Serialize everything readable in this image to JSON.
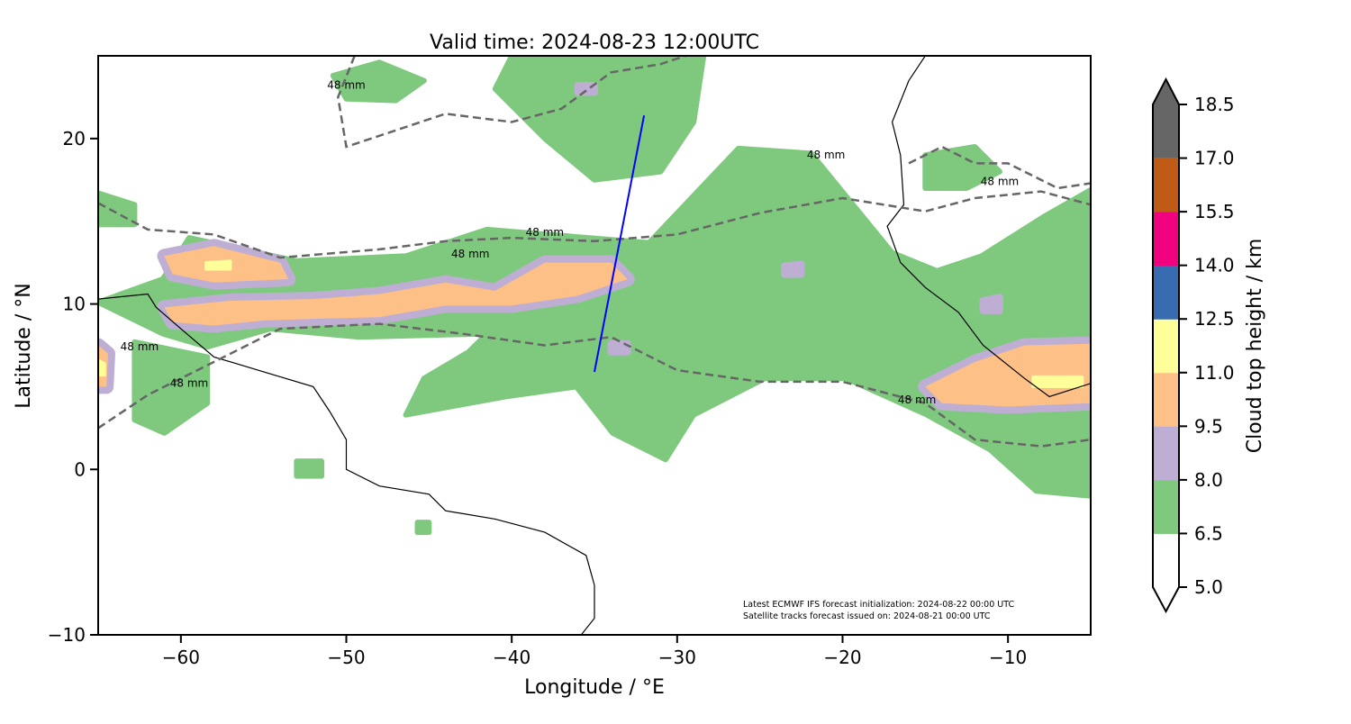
{
  "chart_data": {
    "type": "map",
    "title": "Valid time: 2024-08-23 12:00UTC",
    "xlabel": "Longitude / °E",
    "ylabel": "Latitude / °N",
    "xlim": [
      -65,
      -5
    ],
    "ylim": [
      -10,
      25
    ],
    "xticks": [
      -60,
      -50,
      -40,
      -30,
      -20,
      -10
    ],
    "xtick_labels": [
      "−60",
      "−50",
      "−40",
      "−30",
      "−20",
      "−10"
    ],
    "yticks": [
      -10,
      0,
      10,
      20
    ],
    "ytick_labels": [
      "−10",
      "0",
      "10",
      "20"
    ],
    "colorbar": {
      "label": "Cloud top height / km",
      "ticks": [
        "5.0",
        "6.5",
        "8.0",
        "9.5",
        "11.0",
        "12.5",
        "14.0",
        "15.5",
        "17.0",
        "18.5"
      ],
      "colors": [
        "#ffffff",
        "#7fc97f",
        "#beaed4",
        "#fdc086",
        "#ffff99",
        "#386cb0",
        "#f0027f",
        "#bf5b17",
        "#666666"
      ],
      "extend": "both"
    },
    "annotation": [
      "Latest ECMWF IFS forecast initialization: 2024-08-22 00:00 UTC",
      "Satellite tracks forecast issued on: 2024-08-21 00:00 UTC"
    ],
    "contour_label": "48 mm",
    "contour_label_positions": [
      [
        -50,
        23
      ],
      [
        -21,
        18.8
      ],
      [
        -10.5,
        17.2
      ],
      [
        -38,
        14.1
      ],
      [
        -42.5,
        12.8
      ],
      [
        -62.5,
        7.2
      ],
      [
        -59.5,
        5
      ],
      [
        -15.5,
        4
      ]
    ],
    "green_regions": [
      [
        [
          -61.1,
          11.5
        ],
        [
          -59.5,
          14.0
        ],
        [
          -53.0,
          12.6
        ],
        [
          -46.4,
          12.9
        ],
        [
          -41.5,
          14.5
        ],
        [
          -31.7,
          13.7
        ],
        [
          -26.3,
          19.4
        ],
        [
          -21.9,
          19.1
        ],
        [
          -17.0,
          13.1
        ],
        [
          -14.3,
          12.0
        ],
        [
          -11.6,
          12.9
        ],
        [
          -7.8,
          15.3
        ],
        [
          -5,
          16.9
        ],
        [
          -5,
          -1.6
        ],
        [
          -8.3,
          -1.3
        ],
        [
          -11.1,
          1.2
        ],
        [
          -14.9,
          3.3
        ],
        [
          -19.8,
          5.5
        ],
        [
          -24.7,
          5.5
        ],
        [
          -29.0,
          3.3
        ],
        [
          -30.7,
          0.6
        ],
        [
          -33.9,
          2.2
        ],
        [
          -36.1,
          5.0
        ],
        [
          -40.4,
          4.4
        ],
        [
          -46.4,
          3.3
        ],
        [
          -45.3,
          5.5
        ],
        [
          -42.6,
          7.1
        ],
        [
          -41.5,
          8.2
        ],
        [
          -49.2,
          8.0
        ],
        [
          -54.6,
          8.5
        ],
        [
          -58.4,
          7.4
        ],
        [
          -61.1,
          8.2
        ],
        [
          -65,
          10.1
        ]
      ],
      [
        [
          -40,
          25
        ],
        [
          -28.4,
          25
        ],
        [
          -29,
          21
        ],
        [
          -31,
          18
        ],
        [
          -35,
          17.5
        ],
        [
          -38,
          20
        ],
        [
          -41,
          23
        ]
      ],
      [
        [
          -50.8,
          23.8
        ],
        [
          -48,
          24.6
        ],
        [
          -45.3,
          23.5
        ],
        [
          -47,
          22.3
        ],
        [
          -50,
          22.4
        ]
      ],
      [
        [
          -65,
          16.7
        ],
        [
          -62.8,
          16
        ],
        [
          -62.8,
          14.8
        ],
        [
          -65,
          14.8
        ]
      ],
      [
        [
          -62.8,
          7.7
        ],
        [
          -58.4,
          6.8
        ],
        [
          -58.4,
          4.0
        ],
        [
          -61,
          2.2
        ],
        [
          -62.8,
          3.0
        ]
      ],
      [
        [
          -45.7,
          -3.2
        ],
        [
          -45,
          -3.2
        ],
        [
          -45,
          -3.8
        ],
        [
          -45.7,
          -3.8
        ]
      ],
      [
        [
          -53,
          0.5
        ],
        [
          -51.5,
          0.5
        ],
        [
          -51.5,
          -0.4
        ],
        [
          -53,
          -0.4
        ]
      ],
      [
        [
          -15,
          19
        ],
        [
          -12,
          19.5
        ],
        [
          -10.5,
          18
        ],
        [
          -12.5,
          17
        ],
        [
          -15,
          17
        ]
      ]
    ],
    "orange_regions": [
      [
        [
          -61,
          12.9
        ],
        [
          -58,
          13.5
        ],
        [
          -54,
          12.5
        ],
        [
          -53.5,
          11.5
        ],
        [
          -58,
          11.3
        ],
        [
          -60.5,
          11.8
        ]
      ],
      [
        [
          -61,
          9.8
        ],
        [
          -57,
          10.2
        ],
        [
          -52,
          10.3
        ],
        [
          -48,
          10.6
        ],
        [
          -44,
          11.3
        ],
        [
          -41,
          10.8
        ],
        [
          -38,
          12.5
        ],
        [
          -34,
          12.5
        ],
        [
          -33,
          11.5
        ],
        [
          -36,
          10.5
        ],
        [
          -40,
          9.9
        ],
        [
          -44,
          9.9
        ],
        [
          -48,
          9.2
        ],
        [
          -52,
          9.1
        ],
        [
          -55,
          9.0
        ],
        [
          -58,
          8.7
        ],
        [
          -60.5,
          8.9
        ]
      ],
      [
        [
          -15,
          5.0
        ],
        [
          -12,
          6.5
        ],
        [
          -9,
          7.5
        ],
        [
          -5,
          7.6
        ],
        [
          -5,
          4.0
        ],
        [
          -10,
          3.8
        ],
        [
          -14,
          4.0
        ]
      ],
      [
        [
          -65,
          7.5
        ],
        [
          -64.4,
          7
        ],
        [
          -64.5,
          5
        ],
        [
          -65,
          5
        ]
      ]
    ],
    "lavender_regions": [
      [
        [
          -23.5,
          12.3
        ],
        [
          -22.5,
          12.4
        ],
        [
          -22.5,
          11.8
        ],
        [
          -23.5,
          11.8
        ]
      ],
      [
        [
          -11.5,
          10.2
        ],
        [
          -10.5,
          10.4
        ],
        [
          -10.5,
          9.6
        ],
        [
          -11.5,
          9.6
        ]
      ],
      [
        [
          -34,
          7.6
        ],
        [
          -33,
          7.6
        ],
        [
          -33,
          7.1
        ],
        [
          -34,
          7.1
        ]
      ],
      [
        [
          -36,
          23.2
        ],
        [
          -35,
          23.2
        ],
        [
          -35,
          22.8
        ],
        [
          -36,
          22.8
        ]
      ]
    ],
    "yellow_regions": [
      [
        [
          -58.5,
          12.5
        ],
        [
          -57,
          12.6
        ],
        [
          -57,
          12.1
        ],
        [
          -58.5,
          12.1
        ]
      ],
      [
        [
          -8.5,
          5.6
        ],
        [
          -5.5,
          5.6
        ],
        [
          -5.5,
          5.0
        ],
        [
          -8.5,
          5.0
        ]
      ],
      [
        [
          -65,
          6.6
        ],
        [
          -64.6,
          6.4
        ],
        [
          -64.6,
          5.7
        ],
        [
          -65,
          5.7
        ]
      ]
    ],
    "contours_48mm": [
      [
        [
          -65,
          16.1
        ],
        [
          -62,
          14.5
        ],
        [
          -58,
          14.2
        ],
        [
          -54,
          12.8
        ],
        [
          -48,
          13.3
        ],
        [
          -44,
          13.8
        ],
        [
          -40,
          14
        ],
        [
          -35,
          13.8
        ],
        [
          -30,
          14.2
        ],
        [
          -25,
          15.5
        ],
        [
          -20,
          16.4
        ],
        [
          -15,
          15.6
        ],
        [
          -12,
          16.4
        ],
        [
          -8,
          16.8
        ],
        [
          -5,
          16
        ]
      ],
      [
        [
          -65,
          2.5
        ],
        [
          -62,
          4.5
        ],
        [
          -59,
          6
        ],
        [
          -57,
          7
        ],
        [
          -54,
          8.5
        ],
        [
          -48,
          8.8
        ],
        [
          -43,
          8.2
        ],
        [
          -38,
          7.5
        ],
        [
          -34,
          8
        ],
        [
          -30,
          6
        ],
        [
          -25,
          5.3
        ],
        [
          -20,
          5.3
        ],
        [
          -15,
          4
        ],
        [
          -12,
          1.8
        ],
        [
          -8,
          1.4
        ],
        [
          -5,
          1.8
        ]
      ],
      [
        [
          -49.5,
          25
        ],
        [
          -50.5,
          22.5
        ],
        [
          -50,
          19.5
        ],
        [
          -47,
          20.5
        ],
        [
          -44,
          21.5
        ],
        [
          -40,
          21
        ],
        [
          -37,
          21.8
        ],
        [
          -34,
          24
        ],
        [
          -31,
          24.5
        ],
        [
          -29.5,
          25
        ]
      ],
      [
        [
          -16,
          18.5
        ],
        [
          -14,
          19.5
        ],
        [
          -12,
          18.5
        ],
        [
          -10,
          18.5
        ],
        [
          -7,
          17
        ],
        [
          -5,
          17.3
        ]
      ]
    ],
    "coastlines": [
      [
        [
          -65,
          10.3
        ],
        [
          -62,
          10.6
        ],
        [
          -61.5,
          9.8
        ],
        [
          -60,
          8.5
        ],
        [
          -58,
          6.8
        ],
        [
          -55,
          5.9
        ],
        [
          -52,
          5
        ],
        [
          -51,
          3.5
        ],
        [
          -50,
          1.8
        ],
        [
          -50,
          0
        ],
        [
          -48,
          -1
        ],
        [
          -45,
          -1.5
        ],
        [
          -44,
          -2.5
        ],
        [
          -41,
          -3
        ],
        [
          -38,
          -3.8
        ],
        [
          -35.5,
          -5.2
        ],
        [
          -35,
          -7
        ],
        [
          -35,
          -9
        ],
        [
          -35.8,
          -10
        ]
      ],
      [
        [
          -15,
          25
        ],
        [
          -16,
          23.5
        ],
        [
          -17,
          21
        ],
        [
          -16.5,
          19
        ],
        [
          -16.3,
          16
        ],
        [
          -17.3,
          14.7
        ],
        [
          -16.5,
          12.5
        ],
        [
          -15,
          11
        ],
        [
          -13,
          9.5
        ],
        [
          -11.5,
          7.5
        ],
        [
          -9,
          5.5
        ],
        [
          -7.5,
          4.4
        ],
        [
          -5,
          5.2
        ]
      ]
    ],
    "track": [
      [
        -32.0,
        21.4
      ],
      [
        -35.0,
        5.9
      ]
    ]
  }
}
